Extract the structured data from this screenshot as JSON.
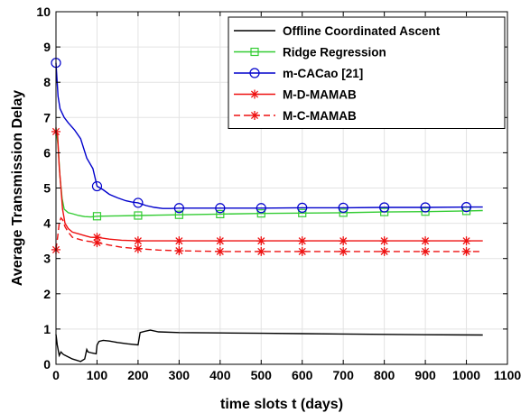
{
  "chart_data": {
    "type": "line",
    "xlabel": "time slots t (days)",
    "ylabel": "Average Transmission Delay",
    "xlim": [
      0,
      1100
    ],
    "ylim": [
      0,
      10
    ],
    "xticks": [
      0,
      100,
      200,
      300,
      400,
      500,
      600,
      700,
      800,
      900,
      1000,
      1100
    ],
    "yticks": [
      0,
      1,
      2,
      3,
      4,
      5,
      6,
      7,
      8,
      9,
      10
    ],
    "grid": true,
    "legend_position": "top-right",
    "series": [
      {
        "name": "Offline Coordinated Ascent",
        "color": "#000000",
        "dash": "solid",
        "marker": "none",
        "x": [
          0,
          3,
          8,
          12,
          18,
          28,
          40,
          60,
          70,
          75,
          78,
          88,
          98,
          100,
          105,
          115,
          130,
          150,
          175,
          200,
          205,
          215,
          230,
          250,
          300,
          400,
          500,
          600,
          700,
          800,
          900,
          1040
        ],
        "y": [
          0.85,
          0.55,
          0.25,
          0.35,
          0.28,
          0.22,
          0.15,
          0.08,
          0.15,
          0.42,
          0.35,
          0.32,
          0.3,
          0.55,
          0.65,
          0.68,
          0.66,
          0.62,
          0.58,
          0.55,
          0.9,
          0.93,
          0.97,
          0.92,
          0.9,
          0.89,
          0.88,
          0.87,
          0.86,
          0.85,
          0.84,
          0.83
        ]
      },
      {
        "name": "Ridge Regression",
        "color": "#33cc33",
        "dash": "solid",
        "marker": "square",
        "x": [
          0,
          5,
          10,
          15,
          20,
          30,
          40,
          55,
          70,
          85,
          100,
          150,
          200,
          250,
          300,
          400,
          500,
          600,
          700,
          800,
          900,
          1000,
          1040
        ],
        "y": [
          6.7,
          6.2,
          5.3,
          4.7,
          4.4,
          4.3,
          4.27,
          4.22,
          4.19,
          4.18,
          4.2,
          4.21,
          4.22,
          4.23,
          4.24,
          4.26,
          4.28,
          4.29,
          4.3,
          4.32,
          4.33,
          4.35,
          4.36
        ],
        "marker_x": [
          100,
          200,
          300,
          400,
          500,
          600,
          700,
          800,
          900,
          1000
        ],
        "marker_y": [
          4.2,
          4.22,
          4.24,
          4.26,
          4.28,
          4.29,
          4.3,
          4.32,
          4.33,
          4.35
        ]
      },
      {
        "name": "m-CACao [21]",
        "color": "#0000cc",
        "dash": "solid",
        "marker": "circle",
        "x": [
          0,
          5,
          10,
          20,
          30,
          45,
          60,
          75,
          90,
          100,
          115,
          130,
          150,
          170,
          185,
          200,
          220,
          240,
          260,
          280,
          300,
          400,
          500,
          600,
          700,
          800,
          900,
          1000,
          1040
        ],
        "y": [
          8.55,
          7.6,
          7.25,
          7.0,
          6.85,
          6.65,
          6.4,
          5.85,
          5.55,
          5.05,
          4.95,
          4.82,
          4.72,
          4.64,
          4.6,
          4.58,
          4.5,
          4.45,
          4.42,
          4.42,
          4.43,
          4.43,
          4.43,
          4.44,
          4.44,
          4.45,
          4.45,
          4.46,
          4.46
        ],
        "marker_x": [
          0,
          100,
          200,
          300,
          400,
          500,
          600,
          700,
          800,
          900,
          1000
        ],
        "marker_y": [
          8.55,
          5.05,
          4.58,
          4.43,
          4.43,
          4.43,
          4.44,
          4.44,
          4.45,
          4.45,
          4.46
        ]
      },
      {
        "name": "M-D-MAMAB",
        "color": "#ee1111",
        "dash": "solid",
        "marker": "asterisk",
        "x": [
          0,
          4,
          8,
          12,
          16,
          22,
          30,
          40,
          55,
          70,
          85,
          100,
          130,
          160,
          200,
          250,
          300,
          400,
          500,
          600,
          700,
          800,
          900,
          1000,
          1040
        ],
        "y": [
          6.6,
          6.5,
          5.6,
          5.0,
          4.4,
          4.0,
          3.85,
          3.75,
          3.7,
          3.65,
          3.6,
          3.6,
          3.55,
          3.52,
          3.5,
          3.5,
          3.5,
          3.5,
          3.5,
          3.5,
          3.5,
          3.5,
          3.5,
          3.5,
          3.5
        ],
        "marker_x": [
          0,
          100,
          200,
          300,
          400,
          500,
          600,
          700,
          800,
          900,
          1000
        ],
        "marker_y": [
          6.6,
          3.6,
          3.5,
          3.5,
          3.5,
          3.5,
          3.5,
          3.5,
          3.5,
          3.5,
          3.5
        ]
      },
      {
        "name": "M-C-MAMAB",
        "color": "#ee1111",
        "dash": "dashed",
        "marker": "asterisk",
        "x": [
          0,
          4,
          8,
          12,
          16,
          22,
          30,
          40,
          55,
          70,
          85,
          100,
          130,
          160,
          200,
          250,
          300,
          400,
          500,
          600,
          700,
          800,
          900,
          1000,
          1040
        ],
        "y": [
          3.25,
          3.6,
          4.0,
          4.15,
          4.1,
          3.9,
          3.75,
          3.6,
          3.55,
          3.5,
          3.48,
          3.45,
          3.38,
          3.32,
          3.28,
          3.24,
          3.22,
          3.2,
          3.2,
          3.2,
          3.2,
          3.2,
          3.2,
          3.2,
          3.2
        ],
        "marker_x": [
          0,
          100,
          200,
          300,
          400,
          500,
          600,
          700,
          800,
          900,
          1000
        ],
        "marker_y": [
          3.25,
          3.45,
          3.28,
          3.22,
          3.2,
          3.2,
          3.2,
          3.2,
          3.2,
          3.2,
          3.2
        ]
      }
    ]
  }
}
